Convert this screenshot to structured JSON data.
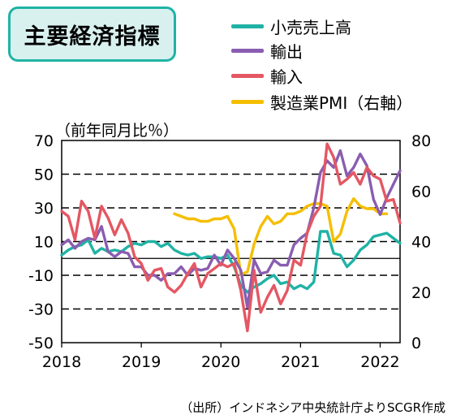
{
  "title": "主要経済指標",
  "unit_label": "（前年同月比％）",
  "source": "（出所）インドネシア中央統計庁よりSCGR作成",
  "colors": {
    "retail": "#20b2a5",
    "exports": "#8a5db0",
    "imports": "#e45763",
    "pmi": "#f5be00",
    "title_border": "#1fb3a5",
    "title_fill": "#d8f1ef"
  },
  "chart_data": {
    "type": "line",
    "x_start": "2018-01",
    "x_end": "2022-04",
    "x_tick_labels": [
      "2018",
      "2019",
      "2020",
      "2021",
      "2022"
    ],
    "x_ticks": [
      "2018-01",
      "2019-01",
      "2020-01",
      "2021-01",
      "2022-01"
    ],
    "left_axis": {
      "ylim": [
        -50,
        70
      ],
      "ticks": [
        -50,
        -30,
        -10,
        10,
        30,
        50,
        70
      ],
      "tick_labels": [
        "-50",
        "-30",
        "-10",
        "10",
        "30",
        "50",
        "70"
      ]
    },
    "right_axis": {
      "ylim": [
        0,
        80
      ],
      "ticks": [
        0,
        20,
        40,
        60,
        80
      ],
      "tick_labels": [
        "0",
        "20",
        "40",
        "60",
        "80"
      ]
    },
    "grid": "dashed horizontal at left-axis ticks",
    "legend_position": "top-right",
    "series": [
      {
        "name": "小売売上高",
        "axis": "left",
        "color_key": "retail",
        "start": "2018-01",
        "values": [
          2,
          5,
          7,
          8,
          11,
          3,
          6,
          4,
          5,
          4,
          7,
          9,
          8,
          10,
          10,
          7,
          9,
          5,
          3,
          2,
          3,
          0,
          1,
          1,
          0,
          2,
          -5,
          -16,
          -20,
          -17,
          -15,
          -12,
          -10,
          -15,
          -14,
          -18,
          -16,
          -18,
          -14,
          16,
          16,
          3,
          2,
          -5,
          -1,
          5,
          8,
          13,
          14,
          15,
          12,
          9
        ]
      },
      {
        "name": "輸出",
        "axis": "left",
        "color_key": "exports",
        "start": "2018-01",
        "values": [
          8,
          11,
          6,
          10,
          12,
          11,
          19,
          4,
          1,
          4,
          3,
          -5,
          -5,
          -10,
          -10,
          -13,
          -9,
          -9,
          -5,
          -10,
          -6,
          -7,
          -6,
          2,
          -4,
          5,
          0,
          -7,
          -29,
          -1,
          -9,
          -8,
          -1,
          -4,
          -4,
          8,
          12,
          15,
          30,
          51,
          58,
          54,
          64,
          49,
          54,
          62,
          55,
          35,
          26,
          36,
          44,
          52
        ]
      },
      {
        "name": "輸入",
        "axis": "left",
        "color_key": "imports",
        "start": "2018-01",
        "values": [
          28,
          25,
          11,
          34,
          28,
          12,
          31,
          24,
          14,
          23,
          15,
          1,
          -3,
          -13,
          -7,
          -6,
          -17,
          -20,
          -16,
          -9,
          -3,
          -17,
          -9,
          -6,
          -3,
          -5,
          -3,
          -19,
          -43,
          -7,
          -32,
          -23,
          -16,
          -27,
          -19,
          -1,
          -4,
          15,
          25,
          31,
          68,
          60,
          44,
          47,
          51,
          44,
          54,
          49,
          47,
          34,
          35,
          21
        ]
      },
      {
        "name": "製造業PMI（右軸）",
        "axis": "right",
        "color_key": "pmi",
        "start": "2019-06",
        "values": [
          51,
          50,
          49,
          49,
          48,
          48,
          49,
          49,
          50,
          45,
          27,
          28,
          39,
          46,
          50,
          47,
          48,
          51,
          51,
          52,
          54,
          55,
          55,
          54,
          40,
          43,
          52,
          57,
          54,
          53,
          53,
          51,
          51
        ]
      }
    ]
  }
}
